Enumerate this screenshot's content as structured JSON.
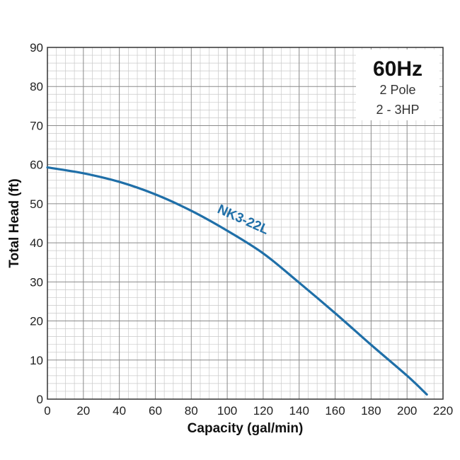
{
  "chart_data": {
    "type": "line",
    "xlabel": "Capacity (gal/min)",
    "ylabel": "Total Head (ft)",
    "xlim": [
      0,
      220
    ],
    "ylim": [
      0,
      90
    ],
    "xticks": [
      0,
      20,
      40,
      60,
      80,
      100,
      120,
      140,
      160,
      180,
      200,
      220
    ],
    "yticks": [
      0,
      10,
      20,
      30,
      40,
      50,
      60,
      70,
      80,
      90
    ],
    "grid": true,
    "info_box": {
      "title": "60Hz",
      "lines": [
        "2 Pole",
        "2 - 3HP"
      ],
      "placement": "top-right"
    },
    "series": [
      {
        "name": "NK3-22L",
        "color": "#1f6fa8",
        "x": [
          0,
          20,
          40,
          60,
          80,
          100,
          120,
          140,
          160,
          180,
          200,
          211
        ],
        "y": [
          59.3,
          57.8,
          55.6,
          52.4,
          48.2,
          43.1,
          37.3,
          29.8,
          22.0,
          13.9,
          6.0,
          1.2
        ]
      }
    ]
  }
}
